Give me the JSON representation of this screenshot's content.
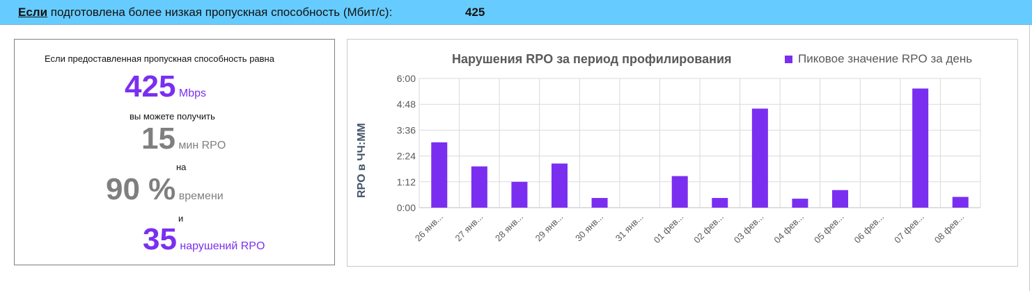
{
  "header": {
    "lead": "Если",
    "text": " подготовлена более низкая пропускная способность (Мбит/с):",
    "value": "425"
  },
  "summary": {
    "line1": "Если предоставленная пропускная способность равна",
    "bandwidth_value": "425",
    "bandwidth_unit": "Mbps",
    "line2": "вы можете получить",
    "rpo_value": "15",
    "rpo_unit": "мин RPO",
    "line3": "на",
    "percent_value": "90 %",
    "percent_unit": "времени",
    "line4": "и",
    "violations_value": "35",
    "violations_unit": "нарушений RPO"
  },
  "chart": {
    "title": "Нарушения RPO за период профилирования",
    "legend_label": "Пиковое значение RPO за день",
    "y_axis_title": "RPO в ЧЧ:ММ",
    "bar_color": "#7a2ff0"
  },
  "chart_data": {
    "type": "bar",
    "title": "Нарушения RPO за период профилирования",
    "xlabel": "",
    "ylabel": "RPO в ЧЧ:ММ",
    "ylim": [
      0,
      360
    ],
    "y_unit": "minutes",
    "y_ticks": [
      0,
      72,
      144,
      216,
      288,
      360
    ],
    "y_tick_labels": [
      "0:00",
      "1:12",
      "2:24",
      "3:36",
      "4:48",
      "6:00"
    ],
    "grid": true,
    "legend_position": "top-right",
    "categories": [
      "26 янв...",
      "27 янв...",
      "28 янв...",
      "29 янв...",
      "30 янв...",
      "31 янв...",
      "01 фев...",
      "02 фев...",
      "03 фев...",
      "04 фев...",
      "05 фев...",
      "06 фев...",
      "07 фев...",
      "08 фев..."
    ],
    "series": [
      {
        "name": "Пиковое значение RPO за день",
        "values": [
          182,
          115,
          72,
          123,
          27,
          0,
          88,
          27,
          276,
          25,
          49,
          0,
          332,
          30
        ]
      }
    ]
  }
}
